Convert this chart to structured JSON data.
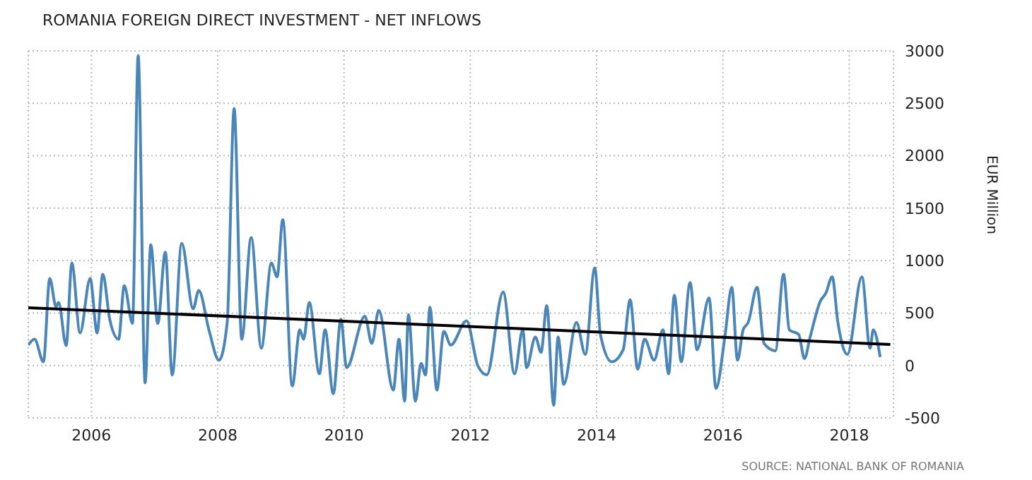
{
  "chart_data": {
    "type": "line",
    "title": "ROMANIA FOREIGN DIRECT INVESTMENT - NET INFLOWS",
    "ylabel": "EUR Million",
    "annotations": [
      "SOURCE: NATIONAL BANK OF ROMANIA"
    ],
    "series": [
      {
        "color": "#4a86b8",
        "x": [
          2005.0,
          2005.1,
          2005.24,
          2005.34,
          2005.44,
          2005.48,
          2005.6,
          2005.69,
          2005.82,
          2005.98,
          2006.09,
          2006.18,
          2006.29,
          2006.43,
          2006.52,
          2006.65,
          2006.74,
          2006.85,
          2006.94,
          2007.05,
          2007.17,
          2007.28,
          2007.43,
          2007.61,
          2007.7,
          2007.86,
          2008.02,
          2008.15,
          2008.26,
          2008.38,
          2008.53,
          2008.69,
          2008.85,
          2008.94,
          2009.03,
          2009.18,
          2009.3,
          2009.36,
          2009.45,
          2009.61,
          2009.7,
          2009.83,
          2009.95,
          2010.04,
          2010.33,
          2010.44,
          2010.55,
          2010.78,
          2010.87,
          2010.96,
          2011.02,
          2011.13,
          2011.22,
          2011.29,
          2011.36,
          2011.47,
          2011.58,
          2011.69,
          2011.94,
          2012.12,
          2012.26,
          2012.52,
          2012.7,
          2012.83,
          2012.89,
          2013.03,
          2013.12,
          2013.21,
          2013.32,
          2013.39,
          2013.48,
          2013.68,
          2013.82,
          2013.97,
          2014.06,
          2014.24,
          2014.42,
          2014.53,
          2014.65,
          2014.76,
          2014.91,
          2015.05,
          2015.14,
          2015.23,
          2015.34,
          2015.48,
          2015.59,
          2015.78,
          2015.89,
          2016.03,
          2016.14,
          2016.23,
          2016.32,
          2016.4,
          2016.54,
          2016.65,
          2016.83,
          2016.96,
          2017.05,
          2017.2,
          2017.29,
          2017.38,
          2017.54,
          2017.63,
          2017.73,
          2017.82,
          2017.97,
          2018.2,
          2018.33,
          2018.38,
          2018.49
        ],
        "values": [
          195,
          250,
          35,
          830,
          560,
          600,
          190,
          975,
          310,
          830,
          310,
          870,
          440,
          250,
          760,
          400,
          2955,
          -165,
          1150,
          400,
          1080,
          -90,
          1165,
          540,
          715,
          340,
          50,
          410,
          2450,
          250,
          1220,
          165,
          975,
          845,
          1390,
          -195,
          340,
          250,
          600,
          -80,
          340,
          -270,
          440,
          -20,
          470,
          210,
          525,
          -235,
          250,
          -340,
          485,
          -340,
          20,
          -90,
          555,
          -235,
          325,
          195,
          425,
          -5,
          -90,
          700,
          -80,
          340,
          -20,
          270,
          125,
          570,
          -380,
          270,
          -180,
          410,
          105,
          930,
          295,
          35,
          150,
          625,
          -35,
          250,
          50,
          340,
          -80,
          670,
          35,
          790,
          150,
          645,
          -220,
          270,
          745,
          50,
          340,
          410,
          745,
          210,
          140,
          870,
          340,
          295,
          65,
          270,
          610,
          690,
          845,
          410,
          105,
          845,
          165,
          340,
          80
        ]
      },
      {
        "type": "line",
        "color": "#000000",
        "x": [
          2005.0,
          2018.65
        ],
        "values": [
          550,
          200
        ]
      }
    ],
    "xlim": [
      2005.0,
      2018.7
    ],
    "xticks": [
      2006,
      2008,
      2010,
      2012,
      2014,
      2016,
      2018
    ],
    "ylim": [
      -500,
      3000
    ],
    "yticks": [
      -500,
      0,
      500,
      1000,
      1500,
      2000,
      2500,
      3000
    ],
    "grid": true,
    "line_style": "solid"
  }
}
